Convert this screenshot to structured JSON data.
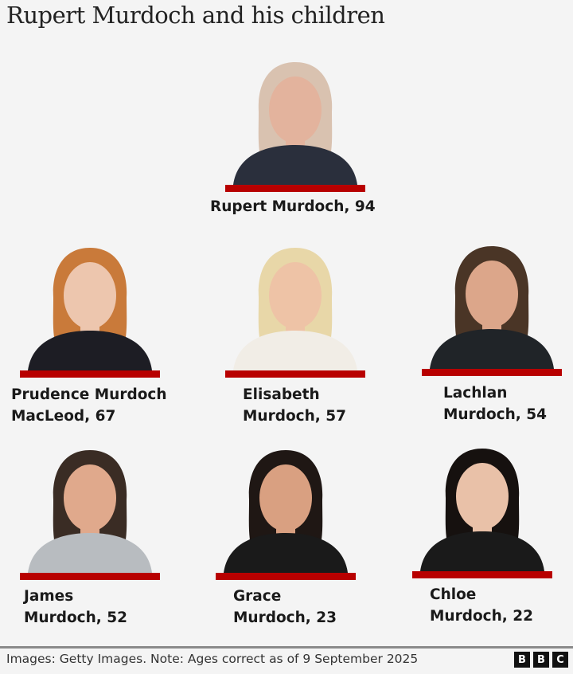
{
  "title": "Rupert Murdoch and his children",
  "accent_color": "#b80000",
  "people": [
    {
      "name_line1": "Rupert Murdoch, 94",
      "name_line2": "",
      "hair": "#d9c2b0",
      "skin": "#e3b39d",
      "clothes": "#2a2f3c"
    },
    {
      "name_line1": "Prudence Murdoch",
      "name_line2": "MacLeod, 67",
      "hair": "#c97a3a",
      "skin": "#edc6ae",
      "clothes": "#1d1d24"
    },
    {
      "name_line1": "Elisabeth",
      "name_line2": "Murdoch, 57",
      "hair": "#e8d7a8",
      "skin": "#eec3a6",
      "clothes": "#f1ede6"
    },
    {
      "name_line1": "Lachlan",
      "name_line2": "Murdoch, 54",
      "hair": "#4a3526",
      "skin": "#dca68a",
      "clothes": "#202428"
    },
    {
      "name_line1": "James",
      "name_line2": "Murdoch, 52",
      "hair": "#3a2c24",
      "skin": "#e0a98c",
      "clothes": "#b8bcc0"
    },
    {
      "name_line1": "Grace",
      "name_line2": "Murdoch, 23",
      "hair": "#1f1714",
      "skin": "#d9a081",
      "clothes": "#1a1a1a"
    },
    {
      "name_line1": "Chloe",
      "name_line2": "Murdoch, 22",
      "hair": "#16110f",
      "skin": "#e9c1a8",
      "clothes": "#1a1a1a"
    }
  ],
  "footer": {
    "note": "Images: Getty Images. Note: Ages correct as of 9 September 2025",
    "logo": [
      "B",
      "B",
      "C"
    ]
  }
}
